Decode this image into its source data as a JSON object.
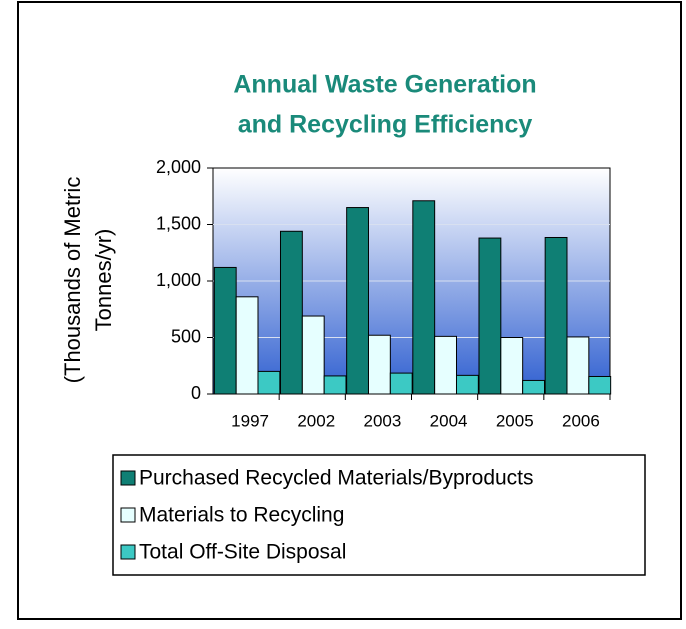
{
  "chart_data": {
    "type": "bar",
    "title_lines": [
      "Annual Waste Generation",
      "and Recycling Efficiency"
    ],
    "ylabel_lines": [
      "(Thousands of Metric",
      "Tonnes/yr)"
    ],
    "categories": [
      "1997",
      "2002",
      "2003",
      "2004",
      "2005",
      "2006"
    ],
    "series": [
      {
        "name": "Purchased Recycled Materials/Byproducts",
        "color": "#0f7f74",
        "values": [
          1120,
          1440,
          1650,
          1710,
          1380,
          1385
        ]
      },
      {
        "name": "Materials to Recycling",
        "color": "#e6ffff",
        "values": [
          860,
          690,
          520,
          510,
          500,
          505
        ]
      },
      {
        "name": "Total Off-Site Disposal",
        "color": "#3cc9c4",
        "values": [
          200,
          160,
          185,
          165,
          120,
          155
        ]
      }
    ],
    "ylim": [
      0,
      2000
    ],
    "yticks": [
      0,
      {
        "value": 500,
        "label": "500"
      },
      {
        "value": 1000,
        "label": "1,000"
      },
      {
        "value": 1500,
        "label": "1,500"
      },
      {
        "value": 2000,
        "label": "2,000"
      }
    ],
    "grid": true
  }
}
